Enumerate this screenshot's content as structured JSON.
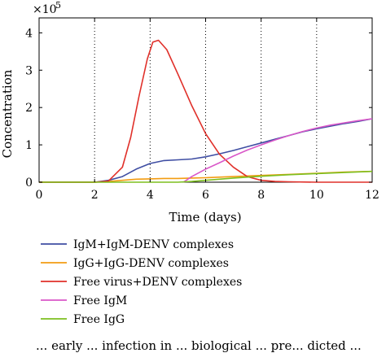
{
  "chart_data": {
    "type": "line",
    "xlabel": "Time (days)",
    "ylabel": "Concentration",
    "y_multiplier_label": "×10",
    "y_multiplier_exponent": "5",
    "xlim": [
      0,
      12
    ],
    "ylim": [
      0,
      4.4
    ],
    "xticks": [
      "0",
      "2",
      "4",
      "6",
      "8",
      "10",
      "12"
    ],
    "yticks": [
      "0",
      "1",
      "2",
      "3",
      "4"
    ],
    "grid_x_dotted_at": [
      2,
      4,
      6,
      8,
      10
    ],
    "legend_position": "below",
    "series": [
      {
        "name": "IgM+IgM-DENV complexes",
        "color": "#3f4ea3",
        "x": [
          0,
          2,
          2.5,
          3,
          3.5,
          4,
          4.5,
          5,
          5.5,
          6,
          6.5,
          7,
          7.5,
          8,
          8.5,
          9,
          9.5,
          10,
          10.5,
          11,
          11.5,
          12
        ],
        "y": [
          0,
          0,
          0.05,
          0.15,
          0.35,
          0.5,
          0.58,
          0.6,
          0.62,
          0.68,
          0.76,
          0.85,
          0.95,
          1.05,
          1.15,
          1.25,
          1.35,
          1.43,
          1.5,
          1.57,
          1.63,
          1.7
        ]
      },
      {
        "name": "IgG+IgG-DENV complexes",
        "color": "#f39c12",
        "x": [
          0,
          2,
          2.5,
          3,
          3.5,
          4,
          4.5,
          5,
          5.5,
          6,
          7,
          8,
          9,
          10,
          11,
          12
        ],
        "y": [
          0,
          0,
          0.02,
          0.05,
          0.08,
          0.09,
          0.1,
          0.1,
          0.11,
          0.12,
          0.15,
          0.18,
          0.21,
          0.24,
          0.27,
          0.29
        ]
      },
      {
        "name": "Free virus+DENV complexes",
        "color": "#e0302a",
        "x": [
          0,
          2,
          2.5,
          3,
          3.3,
          3.6,
          3.9,
          4.1,
          4.3,
          4.6,
          5,
          5.5,
          6,
          6.5,
          7,
          7.5,
          8,
          8.5,
          9,
          10,
          12
        ],
        "y": [
          0,
          0,
          0.03,
          0.4,
          1.2,
          2.3,
          3.3,
          3.75,
          3.8,
          3.55,
          2.9,
          2.05,
          1.3,
          0.75,
          0.4,
          0.15,
          0.05,
          0.02,
          0.01,
          0,
          0
        ]
      },
      {
        "name": "Free IgM",
        "color": "#d957c8",
        "x": [
          5.2,
          5.5,
          6,
          6.5,
          7,
          7.5,
          8,
          8.5,
          9,
          9.5,
          10,
          10.5,
          11,
          11.5,
          12
        ],
        "y": [
          0,
          0.15,
          0.35,
          0.52,
          0.7,
          0.86,
          1.0,
          1.13,
          1.25,
          1.36,
          1.45,
          1.53,
          1.59,
          1.65,
          1.7
        ]
      },
      {
        "name": "Free IgG",
        "color": "#7dbf1f",
        "x": [
          0,
          5,
          5.5,
          6,
          6.5,
          7,
          8,
          9,
          10,
          11,
          12
        ],
        "y": [
          0,
          0,
          0.02,
          0.05,
          0.08,
          0.11,
          0.16,
          0.2,
          0.23,
          0.26,
          0.29
        ]
      }
    ]
  },
  "caption": {
    "text": "... early ... infection in ... biological ... pre... dicted ..."
  }
}
